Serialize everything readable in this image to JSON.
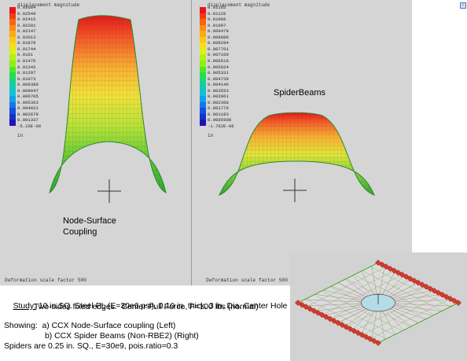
{
  "left_view": {
    "legend_title": "displacement magnitude",
    "legend_values": [
      "0.02684",
      "0.02549",
      "0.02415",
      "0.02281",
      "0.02147",
      "0.02013",
      "0.01879",
      "0.01744",
      "0.0161",
      "0.01476",
      "0.01342",
      "0.01207",
      "0.01073",
      "0.009389",
      "0.008047",
      "0.006705",
      "0.005363",
      "0.004021",
      "0.002679",
      "0.001337",
      "-5.15E-06"
    ],
    "legend_unit": "in",
    "annotation": [
      "Node-Surface",
      "Coupling"
    ],
    "scale_text": "Deformation scale factor 500"
  },
  "right_view": {
    "legend_title": "displacement magnitude",
    "legend_values": [
      "0.01185",
      "0.01126",
      "0.01066",
      "0.01007",
      "0.009479",
      "0.008886",
      "0.008294",
      "0.007701",
      "0.007109",
      "0.006516",
      "0.005924",
      "0.005331",
      "0.004739",
      "0.004146",
      "0.003553",
      "0.002961",
      "0.002368",
      "0.001776",
      "0.001183",
      "0.0005908",
      "-1.762E-06"
    ],
    "legend_unit": "in",
    "annotation": "SpiderBeams",
    "scale_text": "Deformation scale factor 500"
  },
  "description": {
    "study_label": "Study:",
    "study_line1": " 10 in.SQ. Steel PL (E=30e6 psi), 0.10 in. thick, 3 in. Dia. Center Hole",
    "study_line2": "Two-sides fixed edges.  Center Pull Force, F=100 lbs (normal)",
    "showing_line": "Showing:  a) CCX Node-Surface coupling (Left)",
    "showing_line2": "b) CCX Spider Beams (Non-RBE2) (Right)",
    "spiders_line": "Spiders are 0.25 in. SQ., E=30e9, pois.ratio=0.3"
  },
  "colors": {
    "legend_scale": [
      "#e8141e",
      "#f03c14",
      "#f86414",
      "#fc8c14",
      "#fcaa14",
      "#fcc814",
      "#f4e014",
      "#dcf014",
      "#b4f014",
      "#8cf014",
      "#50e628",
      "#28dc50",
      "#14d28c",
      "#14c8b4",
      "#14bedc",
      "#14a0e6",
      "#1478e6",
      "#1450dc",
      "#1432c8",
      "#1e14b4",
      "#0a0a8c"
    ],
    "mesh_green": "#4aa832",
    "hole_fill": "#b4dce6",
    "spider_red": "#d23c2d"
  },
  "icons": {
    "corner_button": "window-restore-icon",
    "center_marker": "crosshair-icon"
  }
}
